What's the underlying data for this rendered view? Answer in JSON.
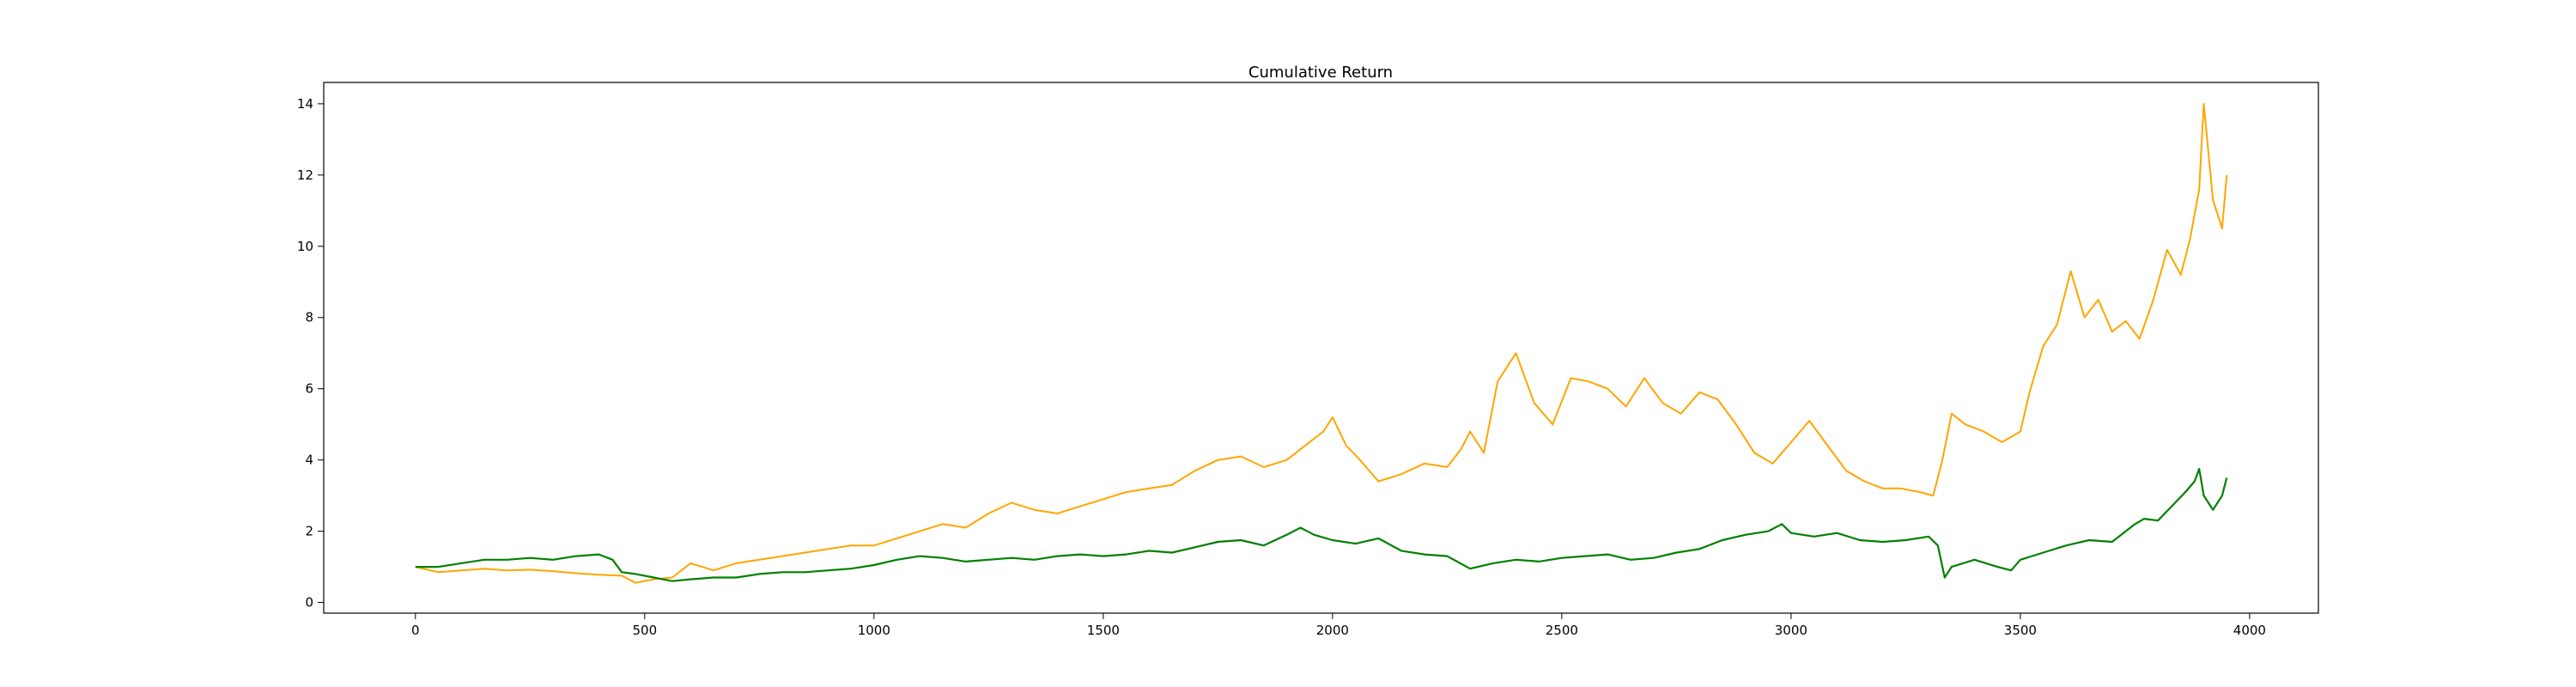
{
  "chart_data": {
    "type": "line",
    "title": "Cumulative Return",
    "xlabel": "",
    "ylabel": "",
    "xlim": [
      -200,
      4150
    ],
    "ylim": [
      -0.3,
      14.6
    ],
    "x_ticks": [
      0,
      500,
      1000,
      1500,
      2000,
      2500,
      3000,
      3500,
      4000
    ],
    "y_ticks": [
      0,
      2,
      4,
      6,
      8,
      10,
      12,
      14
    ],
    "grid": false,
    "legend": "none",
    "series": [
      {
        "color": "#ffa500",
        "x": [
          0,
          50,
          100,
          150,
          200,
          250,
          300,
          350,
          400,
          450,
          480,
          520,
          560,
          600,
          650,
          700,
          750,
          800,
          850,
          900,
          950,
          1000,
          1050,
          1100,
          1150,
          1200,
          1250,
          1300,
          1350,
          1400,
          1450,
          1500,
          1550,
          1600,
          1650,
          1700,
          1750,
          1800,
          1850,
          1900,
          1950,
          1980,
          2000,
          2030,
          2060,
          2100,
          2150,
          2200,
          2250,
          2280,
          2300,
          2330,
          2360,
          2380,
          2400,
          2440,
          2480,
          2520,
          2560,
          2600,
          2640,
          2680,
          2720,
          2760,
          2800,
          2840,
          2880,
          2920,
          2960,
          3000,
          3040,
          3080,
          3120,
          3160,
          3200,
          3240,
          3280,
          3310,
          3330,
          3350,
          3380,
          3420,
          3460,
          3500,
          3520,
          3550,
          3580,
          3610,
          3640,
          3670,
          3700,
          3730,
          3760,
          3790,
          3820,
          3850,
          3870,
          3890,
          3900,
          3920,
          3940,
          3950
        ],
        "y": [
          1.0,
          0.85,
          0.9,
          0.95,
          0.9,
          0.92,
          0.88,
          0.82,
          0.78,
          0.75,
          0.55,
          0.65,
          0.7,
          1.1,
          0.9,
          1.1,
          1.2,
          1.3,
          1.4,
          1.5,
          1.6,
          1.6,
          1.8,
          2.0,
          2.2,
          2.1,
          2.5,
          2.8,
          2.6,
          2.5,
          2.7,
          2.9,
          3.1,
          3.2,
          3.3,
          3.7,
          4.0,
          4.1,
          3.8,
          4.0,
          4.5,
          4.8,
          5.2,
          4.4,
          4.0,
          3.4,
          3.6,
          3.9,
          3.8,
          4.3,
          4.8,
          4.2,
          6.2,
          6.6,
          7.0,
          5.6,
          5.0,
          6.3,
          6.2,
          6.0,
          5.5,
          6.3,
          5.6,
          5.3,
          5.9,
          5.7,
          5.0,
          4.2,
          3.9,
          4.5,
          5.1,
          4.4,
          3.7,
          3.4,
          3.2,
          3.2,
          3.1,
          3.0,
          4.0,
          5.3,
          5.0,
          4.8,
          4.5,
          4.8,
          5.9,
          7.2,
          7.8,
          9.3,
          8.0,
          8.5,
          7.6,
          7.9,
          7.4,
          8.5,
          9.9,
          9.2,
          10.2,
          11.6,
          14.0,
          11.3,
          10.5,
          12.0
        ],
        "name": ""
      },
      {
        "color": "#008000",
        "x": [
          0,
          50,
          100,
          150,
          200,
          250,
          300,
          350,
          400,
          430,
          450,
          480,
          520,
          560,
          600,
          650,
          700,
          750,
          800,
          850,
          900,
          950,
          1000,
          1050,
          1100,
          1150,
          1200,
          1250,
          1300,
          1350,
          1400,
          1450,
          1500,
          1550,
          1600,
          1650,
          1700,
          1750,
          1800,
          1850,
          1900,
          1930,
          1960,
          2000,
          2050,
          2100,
          2150,
          2200,
          2250,
          2300,
          2350,
          2400,
          2450,
          2500,
          2550,
          2600,
          2650,
          2700,
          2750,
          2800,
          2850,
          2900,
          2950,
          2980,
          3000,
          3050,
          3100,
          3150,
          3200,
          3250,
          3300,
          3320,
          3335,
          3350,
          3400,
          3450,
          3480,
          3500,
          3550,
          3600,
          3650,
          3700,
          3750,
          3770,
          3800,
          3830,
          3860,
          3880,
          3890,
          3900,
          3920,
          3940,
          3950
        ],
        "y": [
          1.0,
          1.0,
          1.1,
          1.2,
          1.2,
          1.25,
          1.2,
          1.3,
          1.35,
          1.2,
          0.85,
          0.8,
          0.7,
          0.6,
          0.65,
          0.7,
          0.7,
          0.8,
          0.85,
          0.85,
          0.9,
          0.95,
          1.05,
          1.2,
          1.3,
          1.25,
          1.15,
          1.2,
          1.25,
          1.2,
          1.3,
          1.35,
          1.3,
          1.35,
          1.45,
          1.4,
          1.55,
          1.7,
          1.75,
          1.6,
          1.9,
          2.1,
          1.9,
          1.75,
          1.65,
          1.8,
          1.45,
          1.35,
          1.3,
          0.95,
          1.1,
          1.2,
          1.15,
          1.25,
          1.3,
          1.35,
          1.2,
          1.25,
          1.4,
          1.5,
          1.75,
          1.9,
          2.0,
          2.2,
          1.95,
          1.85,
          1.95,
          1.75,
          1.7,
          1.75,
          1.85,
          1.6,
          0.7,
          1.0,
          1.2,
          1.0,
          0.9,
          1.2,
          1.4,
          1.6,
          1.75,
          1.7,
          2.2,
          2.35,
          2.3,
          2.7,
          3.1,
          3.4,
          3.75,
          3.0,
          2.6,
          3.0,
          3.5
        ],
        "name": ""
      }
    ]
  }
}
